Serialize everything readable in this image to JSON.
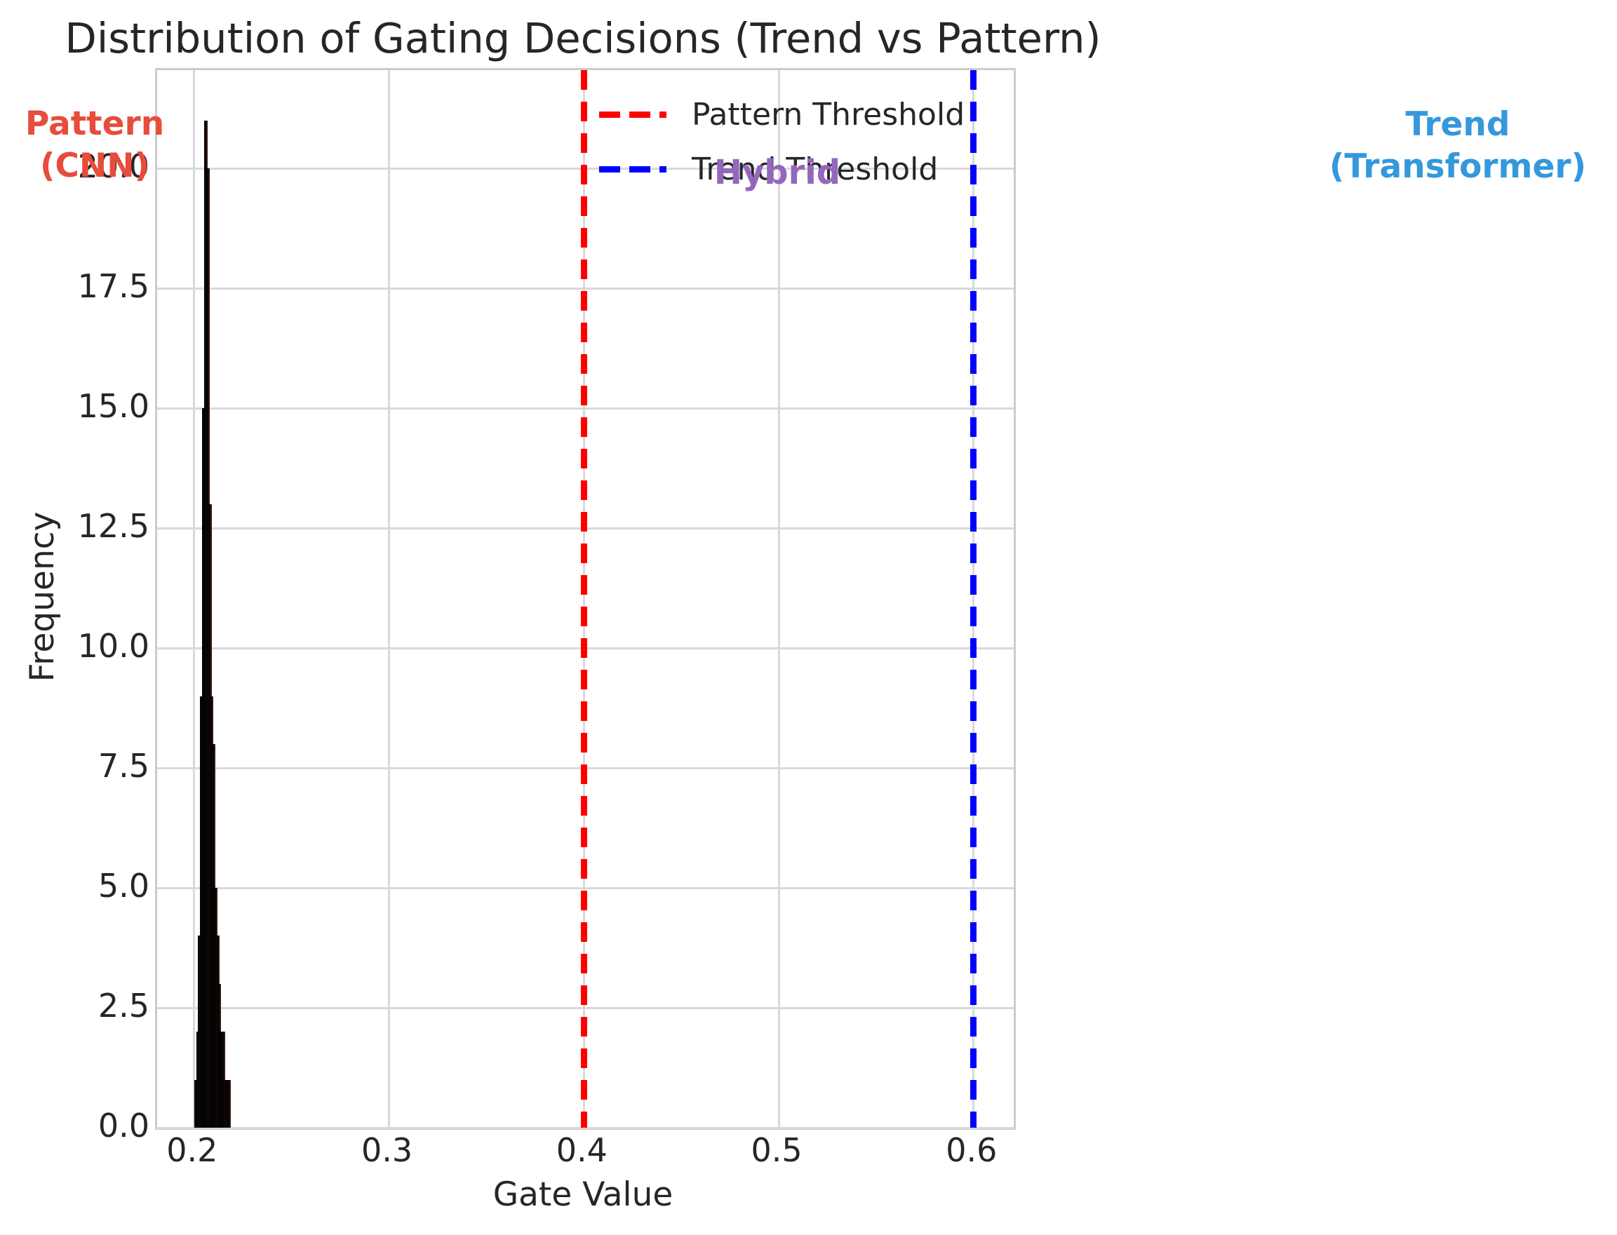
{
  "title": "Distribution of Gating Decisions (Trend vs Pattern)",
  "axes": {
    "xlabel": "Gate Value",
    "ylabel": "Frequency"
  },
  "legend": {
    "items": [
      {
        "label": "Pattern Threshold",
        "color": "#ff0000"
      },
      {
        "label": "Trend Threshold",
        "color": "#0000ff"
      }
    ]
  },
  "annotations": {
    "pattern": {
      "line1": "Pattern",
      "line2": "(CNN)",
      "color": "#e74c3c"
    },
    "hybrid": {
      "text": "Hybrid",
      "color": "#9467bd"
    },
    "trend": {
      "line1": "Trend",
      "line2": "(Transformer)",
      "color": "#3498db"
    }
  },
  "colors": {
    "histogram_fill": "#0f0808",
    "histogram_edge": "#000000",
    "grid": "#d9d9d9",
    "spine": "#cccccc",
    "text": "#262626"
  },
  "chart_data": {
    "type": "bar",
    "subtype": "histogram",
    "title": "Distribution of Gating Decisions (Trend vs Pattern)",
    "xlabel": "Gate Value",
    "ylabel": "Frequency",
    "histogram": {
      "bin_start": 0.2,
      "bin_width": 0.001,
      "frequencies": [
        1,
        2,
        4,
        9,
        15,
        21,
        20,
        13,
        9,
        8,
        5,
        4,
        3,
        2,
        2,
        1,
        1,
        1
      ],
      "color": "#0f0808",
      "edge_color": "#000000"
    },
    "thresholds": [
      {
        "name": "Pattern Threshold",
        "x": 0.4,
        "color": "#ff0000",
        "style": "dashed"
      },
      {
        "name": "Trend Threshold",
        "x": 0.6,
        "color": "#0000ff",
        "style": "dashed"
      }
    ],
    "x_ticks": {
      "values": [
        0.2,
        0.3,
        0.4,
        0.5,
        0.6
      ],
      "labels": [
        "0.2",
        "0.3",
        "0.4",
        "0.5",
        "0.6"
      ]
    },
    "y_ticks": {
      "values": [
        0,
        2.5,
        5,
        7.5,
        10,
        12.5,
        15,
        17.5,
        20
      ],
      "labels": [
        "0.0",
        "2.5",
        "5.0",
        "7.5",
        "10.0",
        "12.5",
        "15.0",
        "17.5",
        "20.0"
      ]
    },
    "xlim": [
      0.181,
      0.6206
    ],
    "ylim": [
      0,
      22.05
    ],
    "grid": true,
    "legend_position": "upper center-right, no frame",
    "region_labels": [
      {
        "text": "Pattern (CNN)",
        "x": 0.15,
        "y": 20.4,
        "color": "#e74c3c"
      },
      {
        "text": "Hybrid",
        "x": 0.5,
        "y": 20.0,
        "color": "#9467bd"
      },
      {
        "text": "Trend (Transformer)",
        "x": 0.85,
        "y": 20.4,
        "color": "#3498db"
      }
    ]
  }
}
